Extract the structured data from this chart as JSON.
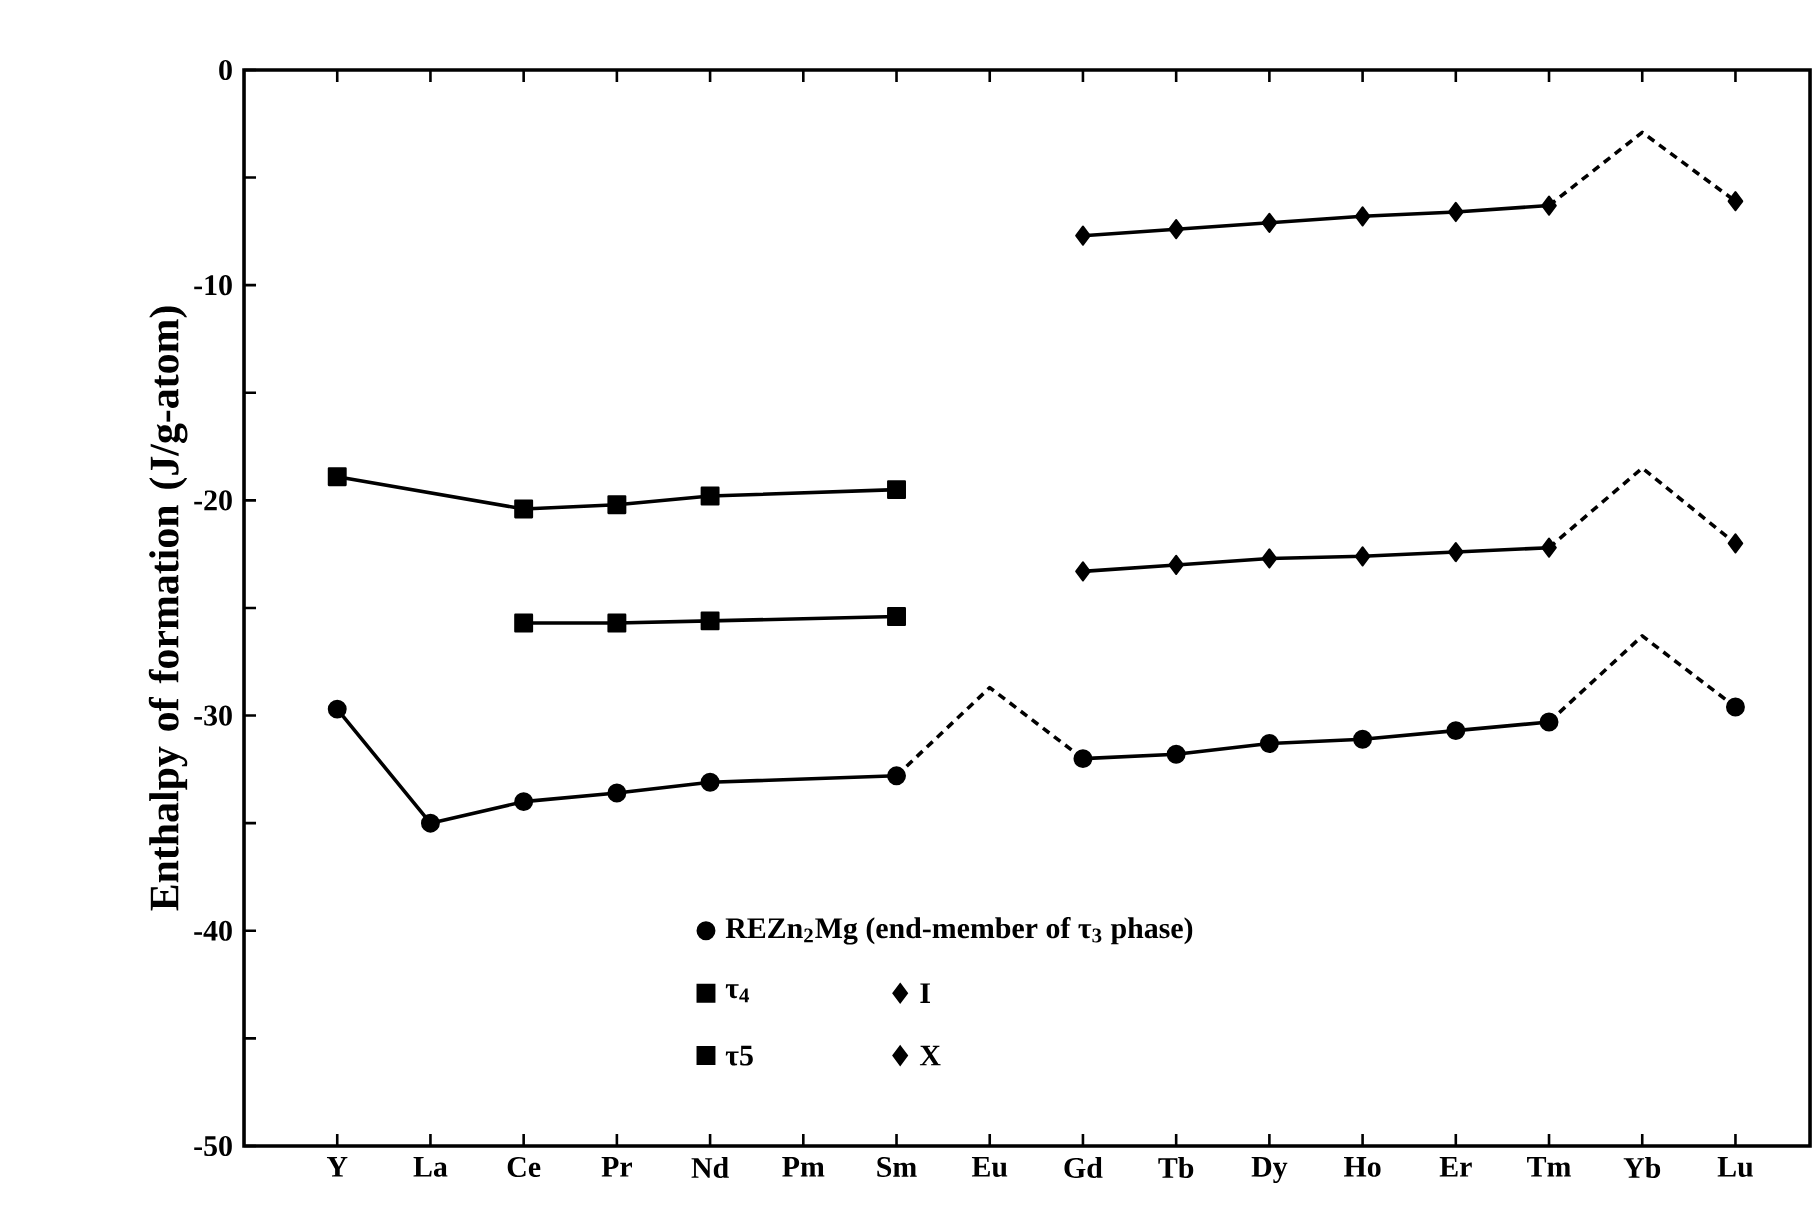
{
  "chart_data": {
    "type": "line",
    "ylabel": "Enthalpy of formation (J/g-atom)",
    "categories": [
      "Y",
      "La",
      "Ce",
      "Pr",
      "Nd",
      "Pm",
      "Sm",
      "Eu",
      "Gd",
      "Tb",
      "Dy",
      "Ho",
      "Er",
      "Tm",
      "Yb",
      "Lu"
    ],
    "ylim": [
      -50,
      0
    ],
    "yticks": [
      -50,
      {
        "value": -45,
        "label": null
      },
      -40,
      {
        "value": -35,
        "label": null
      },
      -30,
      {
        "value": -25,
        "label": null
      },
      -20,
      {
        "value": -15,
        "label": null
      },
      -10,
      {
        "value": -5,
        "label": null
      },
      0
    ],
    "legend": "bottom",
    "grid": false,
    "series": [
      {
        "line_style": "dashed",
        "color": "#000000",
        "values": [
          null,
          null,
          null,
          null,
          null,
          null,
          -32.8,
          -28.7,
          -32.0,
          null,
          null,
          null,
          null,
          null,
          null,
          null
        ]
      },
      {
        "line_style": "dashed",
        "color": "#000000",
        "values": [
          null,
          null,
          null,
          null,
          null,
          null,
          null,
          null,
          null,
          null,
          null,
          null,
          null,
          -30.3,
          -26.3,
          -29.6
        ]
      },
      {
        "line_style": "dashed",
        "color": "#000000",
        "values": [
          null,
          null,
          null,
          null,
          null,
          null,
          null,
          null,
          null,
          null,
          null,
          null,
          null,
          -22.2,
          -18.5,
          -22.0
        ]
      },
      {
        "line_style": "dashed",
        "color": "#000000",
        "values": [
          null,
          null,
          null,
          null,
          null,
          null,
          null,
          null,
          null,
          null,
          null,
          null,
          null,
          -6.3,
          -2.9,
          -6.1
        ]
      },
      {
        "name": "REZn$_{2}$Mg (end-member of τ$_{3}$ phase)",
        "line_style": "solid",
        "marker": "circle",
        "color": "#000000",
        "values": [
          -29.7,
          -35.0,
          -34.0,
          -33.6,
          -33.1,
          null,
          -32.8,
          null,
          null,
          null,
          null,
          null,
          null,
          null,
          null,
          null
        ]
      },
      {
        "line_style": "solid",
        "marker": "circle",
        "color": "#000000",
        "values": [
          null,
          null,
          null,
          null,
          null,
          null,
          null,
          null,
          -32.0,
          -31.8,
          -31.3,
          -31.1,
          -30.7,
          -30.3,
          null,
          null
        ]
      },
      {
        "type": "scatter",
        "marker": "circle",
        "color": "#000000",
        "values": [
          null,
          null,
          null,
          null,
          null,
          null,
          null,
          null,
          null,
          null,
          null,
          null,
          null,
          null,
          null,
          -29.6
        ]
      },
      {
        "name": "τ$_{4}$",
        "line_style": "solid",
        "marker": "square",
        "color": "#000000",
        "values": [
          null,
          null,
          -25.7,
          -25.7,
          -25.6,
          null,
          -25.4,
          null,
          null,
          null,
          null,
          null,
          null,
          null,
          null,
          null
        ]
      },
      {
        "name": "I",
        "line_style": "solid",
        "marker": "diamond",
        "color": "#000000",
        "values": [
          null,
          null,
          null,
          null,
          null,
          null,
          null,
          null,
          -23.3,
          -23.0,
          -22.7,
          -22.6,
          -22.4,
          -22.2,
          null,
          null
        ]
      },
      {
        "type": "scatter",
        "marker": "diamond",
        "color": "#000000",
        "values": [
          null,
          null,
          null,
          null,
          null,
          null,
          null,
          null,
          null,
          null,
          null,
          null,
          null,
          null,
          null,
          -22.0
        ]
      },
      {
        "name": "τ5",
        "line_style": "solid",
        "marker": "square",
        "color": "#000000",
        "values": [
          -18.9,
          null,
          -20.4,
          -20.2,
          -19.8,
          null,
          -19.5,
          null,
          null,
          null,
          null,
          null,
          null,
          null,
          null,
          null
        ]
      },
      {
        "name": "X",
        "line_style": "solid",
        "marker": "diamond",
        "color": "#000000",
        "values": [
          null,
          null,
          null,
          null,
          null,
          null,
          null,
          null,
          -7.7,
          -7.4,
          -7.1,
          -6.8,
          -6.6,
          -6.3,
          null,
          null
        ]
      },
      {
        "type": "scatter",
        "marker": "diamond",
        "color": "#000000",
        "values": [
          null,
          null,
          null,
          null,
          null,
          null,
          null,
          null,
          null,
          null,
          null,
          null,
          null,
          null,
          null,
          -6.1
        ]
      }
    ]
  }
}
